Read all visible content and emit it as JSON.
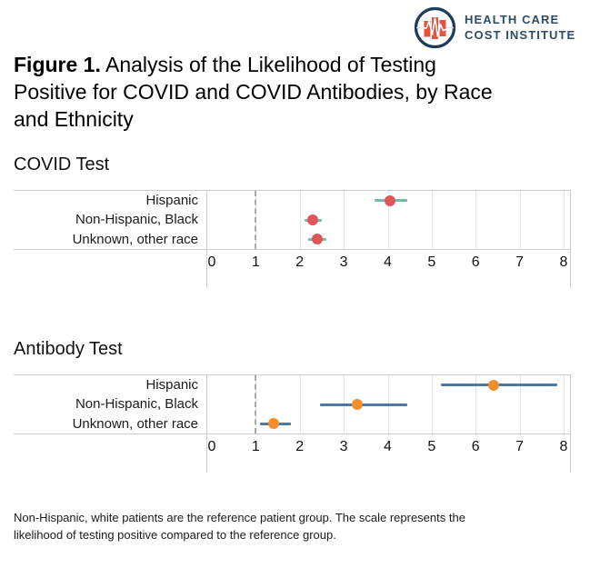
{
  "header": {
    "logo_line1": "HEALTH CARE",
    "logo_line2": "COST INSTITUTE",
    "logo_colors": {
      "ring": "#1e3c59",
      "bars": "#e65340",
      "text": "#2e4b66",
      "baseline": "#d8dbde"
    }
  },
  "figure_title": {
    "prefix": "Figure 1.",
    "rest": " Analysis of the Likelihood of Testing Positive for COVID and COVID Antibodies, by Race and Ethnicity"
  },
  "footnote": "Non-Hispanic, white patients are the reference patient group. The scale represents the likelihood of testing positive compared to the reference group.",
  "chart_data": [
    {
      "type": "scatter",
      "subtype": "forest-plot",
      "title": "COVID Test",
      "categories": [
        "Hispanic",
        "Non-Hispanic, Black",
        "Unknown, other race"
      ],
      "points": [
        4.05,
        2.3,
        2.4
      ],
      "ci_low": [
        3.7,
        2.1,
        2.2
      ],
      "ci_high": [
        4.45,
        2.5,
        2.6
      ],
      "reference_line": 1,
      "xlim": [
        0,
        8
      ],
      "xticks": [
        0,
        1,
        2,
        3,
        4,
        5,
        6,
        7,
        8
      ],
      "xlabel": "",
      "ylabel": "",
      "grid": true,
      "legend": false,
      "point_color": "#e15759",
      "ci_color": "#76b7b2"
    },
    {
      "type": "scatter",
      "subtype": "forest-plot",
      "title": "Antibody Test",
      "categories": [
        "Hispanic",
        "Non-Hispanic, Black",
        "Unknown, other race"
      ],
      "points": [
        6.4,
        3.3,
        1.4
      ],
      "ci_low": [
        5.2,
        2.45,
        1.1
      ],
      "ci_high": [
        7.85,
        4.45,
        1.8
      ],
      "reference_line": 1,
      "xlim": [
        0,
        8
      ],
      "xticks": [
        0,
        1,
        2,
        3,
        4,
        5,
        6,
        7,
        8
      ],
      "xlabel": "",
      "ylabel": "",
      "grid": true,
      "legend": false,
      "point_color": "#f28e2b",
      "ci_color": "#4e79a7"
    }
  ]
}
